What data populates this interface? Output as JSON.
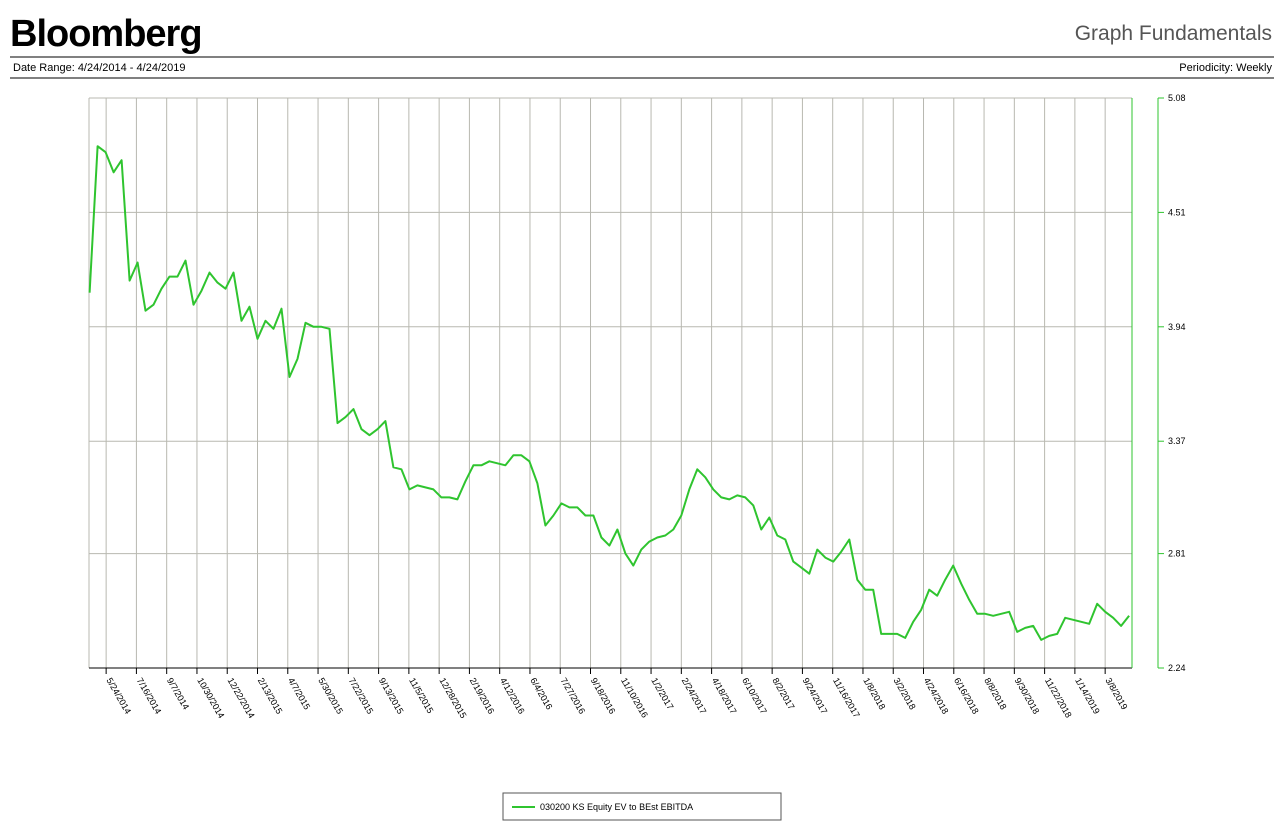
{
  "header": {
    "brand": "Bloomberg",
    "report": "Graph Fundamentals",
    "date_range": "Date Range: 4/24/2014 - 4/24/2019",
    "periodicity": "Periodicity: Weekly"
  },
  "chart_data": {
    "type": "line",
    "grid": true,
    "xlim": [
      "4/24/2014",
      "4/24/2019"
    ],
    "xticks": [
      "5/24/2014",
      "7/16/2014",
      "9/7/2014",
      "10/30/2014",
      "12/22/2014",
      "2/13/2015",
      "4/7/2015",
      "5/30/2015",
      "7/22/2015",
      "9/13/2015",
      "11/5/2015",
      "12/28/2015",
      "2/19/2016",
      "4/12/2016",
      "6/4/2016",
      "7/27/2016",
      "9/18/2016",
      "11/10/2016",
      "1/2/2017",
      "2/24/2017",
      "4/18/2017",
      "6/10/2017",
      "8/2/2017",
      "9/24/2017",
      "11/16/2017",
      "1/8/2018",
      "3/2/2018",
      "4/24/2018",
      "6/16/2018",
      "8/8/2018",
      "9/30/2018",
      "11/22/2018",
      "1/14/2019",
      "3/8/2019"
    ],
    "ylim": [
      2.24,
      5.08
    ],
    "yticks": [
      2.24,
      2.81,
      3.37,
      3.94,
      4.51,
      5.08
    ],
    "x": [
      "4/25/2014",
      "5/9/2014",
      "5/23/2014",
      "6/6/2014",
      "6/20/2014",
      "7/4/2014",
      "7/18/2014",
      "8/1/2014",
      "8/15/2014",
      "8/29/2014",
      "9/12/2014",
      "9/26/2014",
      "10/10/2014",
      "10/24/2014",
      "11/7/2014",
      "11/21/2014",
      "12/5/2014",
      "12/19/2014",
      "1/2/2015",
      "1/16/2015",
      "1/30/2015",
      "2/13/2015",
      "2/27/2015",
      "3/13/2015",
      "3/27/2015",
      "4/10/2015",
      "4/24/2015",
      "5/8/2015",
      "5/22/2015",
      "6/5/2015",
      "6/19/2015",
      "7/3/2015",
      "7/17/2015",
      "7/31/2015",
      "8/14/2015",
      "8/28/2015",
      "9/11/2015",
      "9/25/2015",
      "10/9/2015",
      "10/23/2015",
      "11/6/2015",
      "11/20/2015",
      "12/4/2015",
      "12/18/2015",
      "1/1/2016",
      "1/15/2016",
      "1/29/2016",
      "2/12/2016",
      "2/26/2016",
      "3/11/2016",
      "3/25/2016",
      "4/8/2016",
      "4/22/2016",
      "5/6/2016",
      "5/20/2016",
      "6/3/2016",
      "6/17/2016",
      "7/1/2016",
      "7/15/2016",
      "7/29/2016",
      "8/12/2016",
      "8/26/2016",
      "9/9/2016",
      "9/23/2016",
      "10/7/2016",
      "10/21/2016",
      "11/4/2016",
      "11/18/2016",
      "12/2/2016",
      "12/16/2016",
      "12/30/2016",
      "1/13/2017",
      "1/27/2017",
      "2/10/2017",
      "2/24/2017",
      "3/10/2017",
      "3/24/2017",
      "4/7/2017",
      "4/21/2017",
      "5/5/2017",
      "5/19/2017",
      "6/2/2017",
      "6/16/2017",
      "6/30/2017",
      "7/14/2017",
      "7/28/2017",
      "8/11/2017",
      "8/25/2017",
      "9/8/2017",
      "9/22/2017",
      "10/6/2017",
      "10/20/2017",
      "11/3/2017",
      "11/17/2017",
      "12/1/2017",
      "12/15/2017",
      "12/29/2017",
      "1/12/2018",
      "1/26/2018",
      "2/9/2018",
      "2/23/2018",
      "3/9/2018",
      "3/23/2018",
      "4/6/2018",
      "4/20/2018",
      "5/4/2018",
      "5/18/2018",
      "6/1/2018",
      "6/15/2018",
      "6/29/2018",
      "7/13/2018",
      "7/27/2018",
      "8/10/2018",
      "8/24/2018",
      "9/7/2018",
      "9/21/2018",
      "10/5/2018",
      "10/19/2018",
      "11/2/2018",
      "11/16/2018",
      "11/30/2018",
      "12/14/2018",
      "12/28/2018",
      "1/11/2019",
      "1/25/2019",
      "2/8/2019",
      "2/22/2019",
      "3/8/2019",
      "3/22/2019",
      "4/5/2019",
      "4/19/2019"
    ],
    "series": [
      {
        "name": "030200 KS Equity EV to BEst EBITDA",
        "color": "#2fc42f",
        "values": [
          4.11,
          4.84,
          4.81,
          4.71,
          4.77,
          4.17,
          4.26,
          4.02,
          4.05,
          4.13,
          4.19,
          4.19,
          4.27,
          4.05,
          4.12,
          4.21,
          4.16,
          4.13,
          4.21,
          3.97,
          4.04,
          3.88,
          3.97,
          3.93,
          4.03,
          3.69,
          3.78,
          3.96,
          3.94,
          3.94,
          3.93,
          3.46,
          3.49,
          3.53,
          3.43,
          3.4,
          3.43,
          3.47,
          3.24,
          3.23,
          3.13,
          3.15,
          3.14,
          3.13,
          3.09,
          3.09,
          3.08,
          3.17,
          3.25,
          3.25,
          3.27,
          3.26,
          3.25,
          3.3,
          3.3,
          3.27,
          3.16,
          2.95,
          3.0,
          3.06,
          3.04,
          3.04,
          3.0,
          3.0,
          2.89,
          2.85,
          2.93,
          2.81,
          2.75,
          2.83,
          2.87,
          2.89,
          2.9,
          2.93,
          3.0,
          3.13,
          3.23,
          3.19,
          3.13,
          3.09,
          3.08,
          3.1,
          3.09,
          3.05,
          2.93,
          2.99,
          2.9,
          2.88,
          2.77,
          2.74,
          2.71,
          2.83,
          2.79,
          2.77,
          2.82,
          2.88,
          2.68,
          2.63,
          2.63,
          2.41,
          2.41,
          2.41,
          2.39,
          2.47,
          2.53,
          2.63,
          2.6,
          2.68,
          2.75,
          2.66,
          2.58,
          2.51,
          2.51,
          2.5,
          2.51,
          2.52,
          2.42,
          2.44,
          2.45,
          2.38,
          2.4,
          2.41,
          2.49,
          2.48,
          2.47,
          2.46,
          2.56,
          2.52,
          2.49,
          2.45,
          2.5
        ]
      }
    ]
  }
}
